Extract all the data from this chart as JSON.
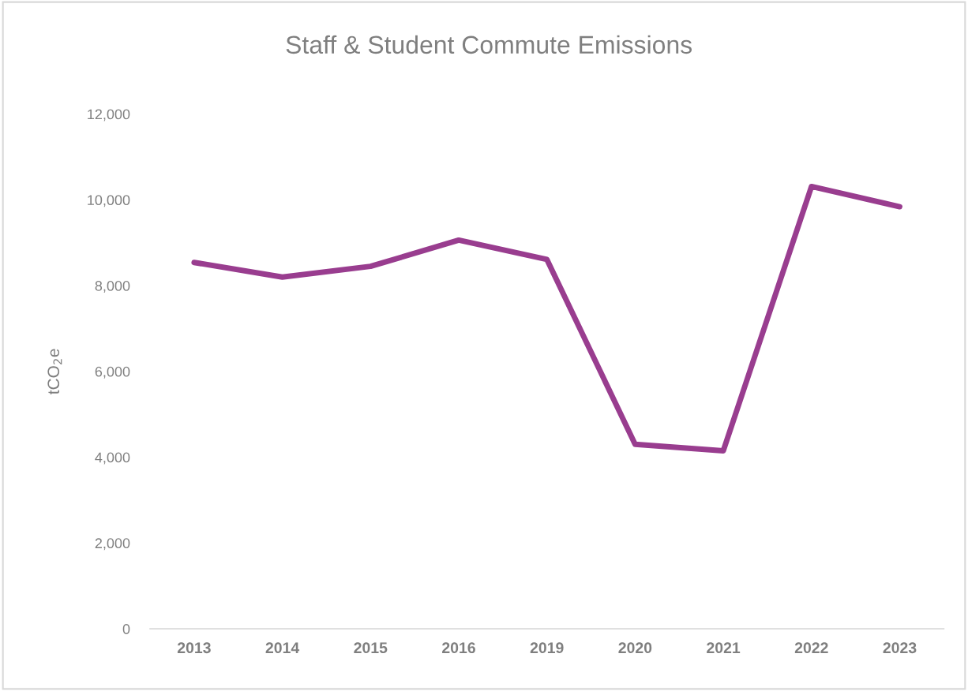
{
  "chart_data": {
    "type": "line",
    "title": "Staff & Student Commute Emissions",
    "ylabel": "tCO$_{2}$e",
    "categories": [
      "2013",
      "2014",
      "2015",
      "2016",
      "2019",
      "2020",
      "2021",
      "2022",
      "2023"
    ],
    "series": [
      {
        "color": "#993d8f",
        "values": [
          8540,
          8200,
          8450,
          9060,
          8610,
          4300,
          4150,
          10310,
          9840
        ]
      }
    ],
    "ylim": [
      0,
      12000
    ],
    "yticks": [
      {
        "value": 0,
        "label": "0"
      },
      {
        "value": 2000,
        "label": "2,000"
      },
      {
        "value": 4000,
        "label": "4,000"
      },
      {
        "value": 6000,
        "label": "6,000"
      },
      {
        "value": 8000,
        "label": "8,000"
      },
      {
        "value": 10000,
        "label": "10,000"
      },
      {
        "value": 12000,
        "label": "12,000"
      }
    ],
    "grid": false,
    "marker": "none",
    "line_style": "solid"
  }
}
